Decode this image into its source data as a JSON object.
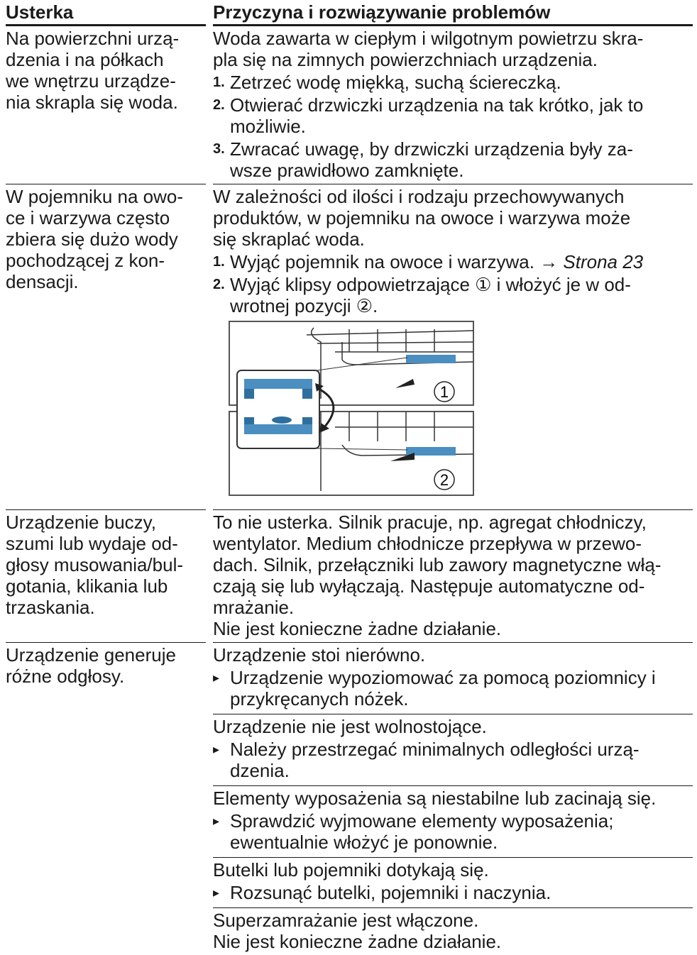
{
  "header": [
    "Usterka",
    "Przyczyna i rozwiązywanie problemów"
  ],
  "rows": [
    {
      "symptom": [
        "Na powierzchni urzą-",
        "dzenia i na półkach",
        "we wnętrzu urządze-",
        "nia skrapla się woda."
      ],
      "causes": [
        {
          "lines": [
            "Woda zawarta w ciepłym i wilgotnym powietrzu skra-",
            "pla się na zimnych powierzchniach urządzenia."
          ],
          "steps": [
            {
              "num": "1.",
              "lines": [
                "Zetrzeć wodę miękką, suchą ściereczką."
              ]
            },
            {
              "num": "2.",
              "lines": [
                "Otwierać drzwiczki urządzenia na tak krótko, jak to",
                "możliwie."
              ]
            },
            {
              "num": "3.",
              "lines": [
                "Zwracać uwagę, by drzwiczki urządzenia były za-",
                "wsze prawidłowo zamknięte."
              ]
            }
          ]
        }
      ]
    },
    {
      "symptom": [
        "W pojemniku na owo-",
        "ce i warzywa często",
        "zbiera się dużo wody",
        "pochodzącej z kon-",
        "densacji."
      ],
      "causes": [
        {
          "lines": [
            "W zależności od ilości i rodzaju przechowywanych",
            "produktów, w pojemniku na owoce i warzywa może",
            "się skraplać woda."
          ],
          "steps": [
            {
              "num": "1.",
              "lines": [
                "Wyjąć pojemnik na owoce i warzywa. →"
              ],
              "link": "Strona 23"
            },
            {
              "num": "2.",
              "lines": [
                "Wyjąć klipsy odpowietrzające ① i włożyć je w od-",
                "wrotnej pozycji ②."
              ]
            }
          ],
          "figure": {
            "labels": [
              "1",
              "2"
            ]
          }
        }
      ]
    },
    {
      "symptom": [
        "Urządzenie buczy,",
        "szumi lub wydaje od-",
        "głosy musowania/bul-",
        "gotania, klikania lub",
        "trzaskania."
      ],
      "causes": [
        {
          "lines": [
            "To nie usterka. Silnik pracuje, np. agregat chłodniczy,",
            "wentylator. Medium chłodnicze przepływa w przewo-",
            "dach. Silnik, przełączniki lub zawory magnetyczne włą-",
            "czają się lub wyłączają. Następuje automatyczne od-",
            "mrażanie.",
            "Nie jest konieczne żadne działanie."
          ]
        }
      ]
    },
    {
      "symptom": [
        "Urządzenie generuje",
        "różne odgłosy."
      ],
      "causes": [
        {
          "lines": [
            "Urządzenie stoi nierówno."
          ],
          "bullets": [
            [
              "Urządzenie wypoziomować za pomocą poziomnicy i",
              "przykręcanych nóżek."
            ]
          ]
        },
        {
          "lines": [
            "Urządzenie nie jest wolnostojące."
          ],
          "bullets": [
            [
              "Należy przestrzegać minimalnych odległości urzą-",
              "dzenia."
            ]
          ]
        },
        {
          "lines": [
            "Elementy wyposażenia są niestabilne lub zacinają się."
          ],
          "bullets": [
            [
              "Sprawdzić wyjmowane elementy wyposażenia;",
              "ewentualnie włożyć je ponownie."
            ]
          ]
        },
        {
          "lines": [
            "Butelki lub pojemniki dotykają się."
          ],
          "bullets": [
            [
              "Rozsunąć butelki, pojemniki i naczynia."
            ]
          ]
        },
        {
          "lines": [
            "Superzamrażanie jest włączone.",
            "Nie jest konieczne żadne działanie."
          ]
        }
      ]
    }
  ]
}
